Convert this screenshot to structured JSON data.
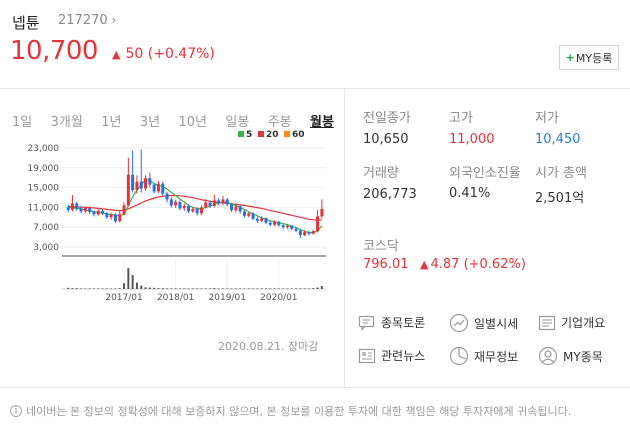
{
  "stock": {
    "name": "넵튠",
    "code": "217270",
    "price": "10,700",
    "change": "50",
    "change_pct": "(+0.47%)",
    "my_button": "MY등록"
  },
  "tabs": [
    "1일",
    "3개월",
    "1년",
    "3년",
    "10년",
    "일봉",
    "주봉",
    "월봉"
  ],
  "active_tab": "월봉",
  "chart_legend": [
    {
      "label": "5",
      "color": "#3bb34a"
    },
    {
      "label": "20",
      "color": "#e2353b"
    },
    {
      "label": "60",
      "color": "#f08c1e"
    }
  ],
  "chart_date": "2020.08.21. 장마감",
  "chart_data": {
    "type": "candlestick",
    "y_ticks": [
      "23,000",
      "19,000",
      "15,000",
      "11,000",
      "7,000",
      "3,000"
    ],
    "x_ticks": [
      "2017/01",
      "2018/01",
      "2019/01",
      "2020/01"
    ],
    "ylim": [
      3000,
      23000
    ],
    "series_names": [
      "5",
      "20",
      "60"
    ],
    "candles": [
      {
        "o": 11000,
        "c": 10500,
        "h": 11500,
        "l": 10000
      },
      {
        "o": 10500,
        "c": 11800,
        "h": 13500,
        "l": 10200
      },
      {
        "o": 11800,
        "c": 10800,
        "h": 12200,
        "l": 10300
      },
      {
        "o": 10800,
        "c": 10200,
        "h": 11300,
        "l": 9800
      },
      {
        "o": 10200,
        "c": 10900,
        "h": 11200,
        "l": 9900
      },
      {
        "o": 10900,
        "c": 10100,
        "h": 11200,
        "l": 9700
      },
      {
        "o": 10100,
        "c": 9600,
        "h": 10400,
        "l": 9200
      },
      {
        "o": 9600,
        "c": 10300,
        "h": 10800,
        "l": 9300
      },
      {
        "o": 10300,
        "c": 9800,
        "h": 10600,
        "l": 9400
      },
      {
        "o": 9800,
        "c": 9000,
        "h": 10100,
        "l": 8700
      },
      {
        "o": 9000,
        "c": 9600,
        "h": 9900,
        "l": 8500
      },
      {
        "o": 9600,
        "c": 8200,
        "h": 9800,
        "l": 7900
      },
      {
        "o": 8200,
        "c": 9600,
        "h": 10300,
        "l": 8000
      },
      {
        "o": 9600,
        "c": 11400,
        "h": 12000,
        "l": 9400
      },
      {
        "o": 11400,
        "c": 17600,
        "h": 21000,
        "l": 11200
      },
      {
        "o": 17600,
        "c": 14500,
        "h": 22500,
        "l": 14000
      },
      {
        "o": 14500,
        "c": 16200,
        "h": 17500,
        "l": 13800
      },
      {
        "o": 16200,
        "c": 14800,
        "h": 22700,
        "l": 14000
      },
      {
        "o": 14800,
        "c": 16900,
        "h": 17500,
        "l": 14300
      },
      {
        "o": 16900,
        "c": 15600,
        "h": 18000,
        "l": 15000
      },
      {
        "o": 15600,
        "c": 14200,
        "h": 16000,
        "l": 13800
      },
      {
        "o": 14200,
        "c": 15800,
        "h": 16300,
        "l": 13900
      },
      {
        "o": 15800,
        "c": 13800,
        "h": 16200,
        "l": 13200
      },
      {
        "o": 13800,
        "c": 12600,
        "h": 14200,
        "l": 12000
      },
      {
        "o": 12600,
        "c": 11400,
        "h": 13000,
        "l": 11000
      },
      {
        "o": 11400,
        "c": 12100,
        "h": 12600,
        "l": 10900
      },
      {
        "o": 12100,
        "c": 10800,
        "h": 12400,
        "l": 10400
      },
      {
        "o": 10800,
        "c": 11300,
        "h": 11800,
        "l": 10300
      },
      {
        "o": 11300,
        "c": 10200,
        "h": 11600,
        "l": 9800
      },
      {
        "o": 10200,
        "c": 10700,
        "h": 11100,
        "l": 9900
      },
      {
        "o": 10700,
        "c": 9800,
        "h": 11000,
        "l": 9400
      },
      {
        "o": 9800,
        "c": 11000,
        "h": 11400,
        "l": 9500
      },
      {
        "o": 11000,
        "c": 12000,
        "h": 12700,
        "l": 10800
      },
      {
        "o": 12000,
        "c": 11300,
        "h": 12400,
        "l": 10900
      },
      {
        "o": 11300,
        "c": 12400,
        "h": 13600,
        "l": 11000
      },
      {
        "o": 12400,
        "c": 11800,
        "h": 12900,
        "l": 11400
      },
      {
        "o": 11800,
        "c": 12600,
        "h": 13300,
        "l": 11500
      },
      {
        "o": 12600,
        "c": 11600,
        "h": 12900,
        "l": 11200
      },
      {
        "o": 11600,
        "c": 10400,
        "h": 11900,
        "l": 10100
      },
      {
        "o": 10400,
        "c": 11200,
        "h": 11800,
        "l": 10000
      },
      {
        "o": 11200,
        "c": 10200,
        "h": 11500,
        "l": 9700
      },
      {
        "o": 10200,
        "c": 9300,
        "h": 10500,
        "l": 9000
      },
      {
        "o": 9300,
        "c": 9800,
        "h": 10100,
        "l": 9000
      },
      {
        "o": 9800,
        "c": 8700,
        "h": 10000,
        "l": 8400
      },
      {
        "o": 8700,
        "c": 8300,
        "h": 9100,
        "l": 7900
      },
      {
        "o": 8300,
        "c": 8800,
        "h": 9200,
        "l": 8000
      },
      {
        "o": 8800,
        "c": 7900,
        "h": 9000,
        "l": 7600
      },
      {
        "o": 7900,
        "c": 7500,
        "h": 8200,
        "l": 7200
      },
      {
        "o": 7500,
        "c": 8100,
        "h": 8400,
        "l": 7200
      },
      {
        "o": 8100,
        "c": 7400,
        "h": 8300,
        "l": 7100
      },
      {
        "o": 7400,
        "c": 7000,
        "h": 7700,
        "l": 6700
      },
      {
        "o": 7000,
        "c": 7300,
        "h": 7600,
        "l": 6700
      },
      {
        "o": 7300,
        "c": 6700,
        "h": 7500,
        "l": 6400
      },
      {
        "o": 6700,
        "c": 6300,
        "h": 7000,
        "l": 6000
      },
      {
        "o": 6300,
        "c": 5400,
        "h": 6600,
        "l": 4800
      },
      {
        "o": 5400,
        "c": 6000,
        "h": 6400,
        "l": 5200
      },
      {
        "o": 6000,
        "c": 5700,
        "h": 6300,
        "l": 5300
      },
      {
        "o": 5700,
        "c": 6200,
        "h": 6500,
        "l": 5500
      },
      {
        "o": 6200,
        "c": 9200,
        "h": 10500,
        "l": 6000
      },
      {
        "o": 9200,
        "c": 10700,
        "h": 12600,
        "l": 8800
      }
    ],
    "ma5": [
      11000,
      10900,
      10800,
      10700,
      10500,
      10300,
      10100,
      10000,
      9800,
      9700,
      9600,
      9400,
      9300,
      9600,
      11300,
      13200,
      14500,
      15600,
      16600,
      16400,
      15800,
      15400,
      15200,
      14700,
      14000,
      13400,
      12700,
      12100,
      11400,
      11000,
      10800,
      10700,
      11000,
      11300,
      11600,
      11900,
      12100,
      12000,
      11700,
      11400,
      11000,
      10600,
      10100,
      9700,
      9300,
      8900,
      8600,
      8300,
      8100,
      7900,
      7700,
      7500,
      7200,
      6900,
      6500,
      6200,
      5900,
      5900,
      6300,
      7300
    ],
    "ma20": [
      11200,
      11150,
      11100,
      11050,
      11000,
      10950,
      10900,
      10800,
      10700,
      10600,
      10500,
      10400,
      10350,
      10400,
      10700,
      11100,
      11500,
      11900,
      12300,
      12600,
      12900,
      13100,
      13250,
      13350,
      13400,
      13400,
      13350,
      13250,
      13100,
      12950,
      12750,
      12550,
      12400,
      12250,
      12100,
      12000,
      11900,
      11800,
      11700,
      11600,
      11500,
      11400,
      11250,
      11100,
      10950,
      10800,
      10600,
      10400,
      10200,
      10000,
      9800,
      9600,
      9400,
      9200,
      9000,
      8800,
      8600,
      8500,
      8450,
      8500
    ],
    "volume": [
      0.04,
      0.03,
      0.03,
      0.02,
      0.02,
      0.02,
      0.02,
      0.02,
      0.02,
      0.02,
      0.02,
      0.02,
      0.03,
      0.2,
      0.72,
      0.48,
      0.22,
      0.12,
      0.06,
      0.05,
      0.04,
      0.03,
      0.03,
      0.02,
      0.02,
      0.02,
      0.02,
      0.02,
      0.02,
      0.02,
      0.02,
      0.02,
      0.02,
      0.02,
      0.03,
      0.02,
      0.02,
      0.02,
      0.02,
      0.02,
      0.02,
      0.02,
      0.02,
      0.02,
      0.02,
      0.02,
      0.02,
      0.02,
      0.02,
      0.02,
      0.02,
      0.02,
      0.02,
      0.02,
      0.02,
      0.02,
      0.02,
      0.03,
      0.05,
      0.1
    ],
    "volume_unit": "fraction of max"
  },
  "stats": [
    {
      "label": "전일종가",
      "value": "10,650",
      "color": "normal"
    },
    {
      "label": "고가",
      "value": "11,000",
      "color": "red"
    },
    {
      "label": "저가",
      "value": "10,450",
      "color": "blue"
    },
    {
      "label": "거래량",
      "value": "206,773",
      "color": "normal"
    },
    {
      "label": "외국인소진율",
      "value": "0.41%",
      "color": "normal"
    },
    {
      "label": "시가 총액",
      "value": "2,501억",
      "color": "normal"
    }
  ],
  "kosdaq": {
    "label": "코스닥",
    "value": "796.01",
    "change": "4.87",
    "change_pct": "(+0.62%)"
  },
  "links": {
    "discussion": "종목토론",
    "daily": "일별시세",
    "company": "기업개요",
    "news": "관련뉴스",
    "finance": "재무정보",
    "my": "MY종목"
  },
  "notice": "네이버는 본 정보의 정확성에 대해 보증하지 않으며, 본 정보를 이용한 투자에 대한 책임은 해당 투자자에게 귀속됩니다."
}
